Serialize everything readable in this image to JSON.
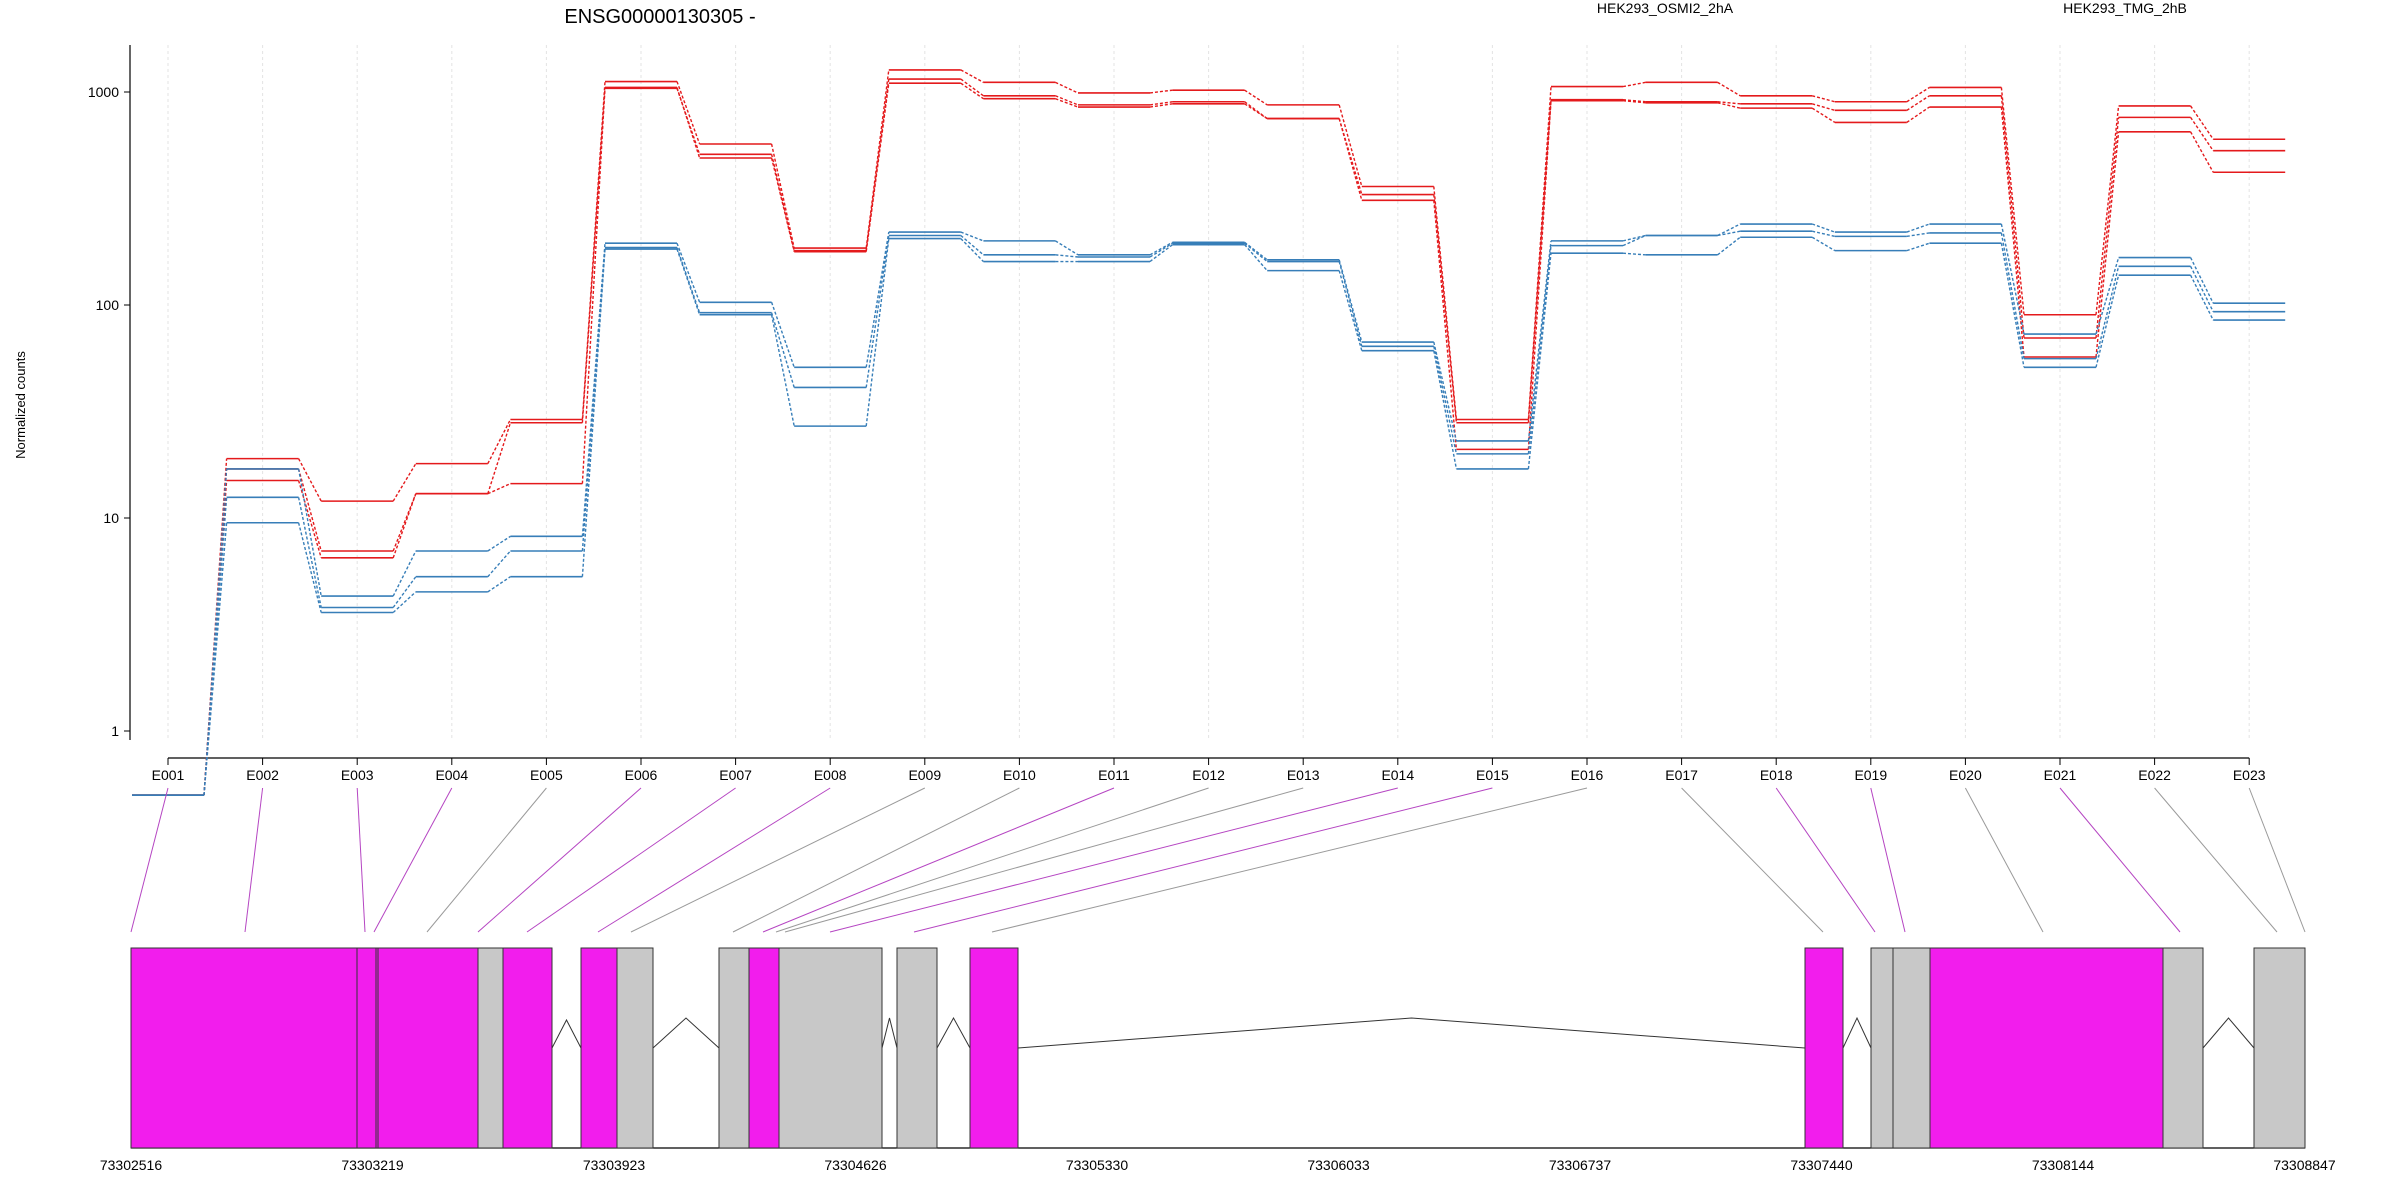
{
  "chart_data": {
    "type": "line",
    "title": "ENSG00000130305 -",
    "ylabel": "Normalized counts",
    "yscale": "log",
    "ylim": [
      0.4,
      1800
    ],
    "yticks": [
      1,
      10,
      100,
      1000
    ],
    "grid": "vertical dashed at exon centers",
    "legend_placement": "top",
    "legend": [
      {
        "label": "HEK293_OSMI2_2hA",
        "color": "#e41a1c"
      },
      {
        "label": "HEK293_TMG_2hB",
        "color": "#377eb8"
      }
    ],
    "categories": [
      "E001",
      "E002",
      "E003",
      "E004",
      "E005",
      "E006",
      "E007",
      "E008",
      "E009",
      "E010",
      "E011",
      "E012",
      "E013",
      "E014",
      "E015",
      "E016",
      "E017",
      "E018",
      "E019",
      "E020",
      "E021",
      "E022",
      "E023"
    ],
    "series": [
      {
        "group": "HEK293_OSMI2_2hA",
        "color": "#e41a1c",
        "values": [
          0.5,
          19,
          12,
          18,
          29,
          1120,
          570,
          185,
          1270,
          1110,
          990,
          1020,
          870,
          360,
          29,
          1060,
          1110,
          960,
          900,
          1050,
          90,
          860,
          600
        ]
      },
      {
        "group": "HEK293_OSMI2_2hA",
        "color": "#e41a1c",
        "values": [
          0.5,
          17,
          7,
          13,
          28,
          1040,
          510,
          180,
          1150,
          960,
          870,
          900,
          750,
          330,
          28,
          920,
          900,
          880,
          820,
          960,
          70,
          760,
          530
        ]
      },
      {
        "group": "HEK293_OSMI2_2hA",
        "color": "#e41a1c",
        "values": [
          0.5,
          15,
          6.5,
          13,
          14.5,
          1050,
          490,
          178,
          1100,
          930,
          850,
          880,
          750,
          310,
          21,
          910,
          890,
          840,
          720,
          850,
          57,
          650,
          420
        ]
      },
      {
        "group": "HEK293_TMG_2hB",
        "color": "#377eb8",
        "values": [
          0.5,
          17,
          4.3,
          7,
          8.2,
          195,
          103,
          51,
          220,
          200,
          172,
          197,
          163,
          67,
          23,
          200,
          212,
          240,
          220,
          240,
          73,
          167,
          102
        ]
      },
      {
        "group": "HEK293_TMG_2hB",
        "color": "#377eb8",
        "values": [
          0.5,
          12.5,
          3.8,
          5.3,
          7,
          186,
          92,
          41,
          212,
          172,
          168,
          195,
          160,
          64,
          20,
          190,
          212,
          222,
          210,
          218,
          56,
          152,
          93
        ]
      },
      {
        "group": "HEK293_TMG_2hB",
        "color": "#377eb8",
        "values": [
          0.5,
          9.5,
          3.6,
          4.5,
          5.3,
          183,
          90,
          27,
          205,
          160,
          160,
          192,
          145,
          61,
          17,
          175,
          172,
          208,
          180,
          195,
          51,
          138,
          85
        ]
      }
    ],
    "genomic_axis": {
      "tick_labels": [
        "73302516",
        "73303219",
        "73303923",
        "73304626",
        "73305330",
        "73306033",
        "73306737",
        "73307440",
        "73308144",
        "73308847"
      ]
    },
    "exon_track": {
      "colors": {
        "significant": "#f21ded",
        "other": "#c8c8c8"
      },
      "blocks": [
        {
          "id": "E001",
          "color": "#f21ded"
        },
        {
          "id": "E002",
          "color": "#f21ded"
        },
        {
          "id": "E003",
          "color": "#f21ded"
        },
        {
          "id": "E004",
          "color": "#f21ded"
        },
        {
          "id": "E005",
          "color": "#c8c8c8"
        },
        {
          "id": "E006",
          "color": "#f21ded"
        },
        {
          "id": "E007",
          "color": "#f21ded"
        },
        {
          "id": "E008",
          "color": "#f21ded"
        },
        {
          "id": "E009",
          "color": "#c8c8c8"
        },
        {
          "id": "E010",
          "color": "#c8c8c8"
        },
        {
          "id": "E011",
          "color": "#f21ded"
        },
        {
          "id": "E012",
          "color": "#c8c8c8"
        },
        {
          "id": "E013",
          "color": "#c8c8c8"
        },
        {
          "id": "E014",
          "color": "#f21ded"
        },
        {
          "id": "E015",
          "color": "#f21ded"
        },
        {
          "id": "E016",
          "color": "#c8c8c8"
        },
        {
          "id": "E017",
          "color": "#c8c8c8"
        },
        {
          "id": "E018",
          "color": "#f21ded"
        },
        {
          "id": "E019",
          "color": "#f21ded"
        },
        {
          "id": "E020",
          "color": "#c8c8c8"
        },
        {
          "id": "E021",
          "color": "#f21ded"
        },
        {
          "id": "E022",
          "color": "#c8c8c8"
        },
        {
          "id": "E023",
          "color": "#c8c8c8"
        }
      ]
    }
  }
}
